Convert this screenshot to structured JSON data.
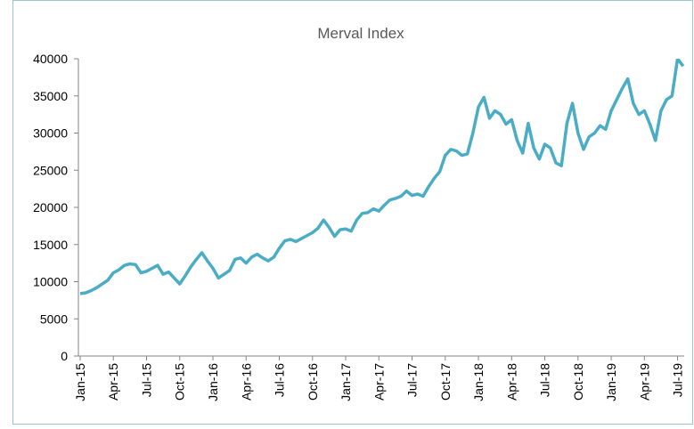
{
  "chart_data": {
    "type": "line",
    "title": "Merval Index",
    "x": [
      0,
      0.5,
      1,
      1.5,
      2,
      2.5,
      3,
      3.5,
      4,
      4.5,
      5,
      5.5,
      6,
      6.5,
      7,
      7.5,
      8,
      8.5,
      9,
      9.5,
      10,
      10.5,
      11,
      11.5,
      12,
      12.5,
      13,
      13.5,
      14,
      14.5,
      15,
      15.5,
      16,
      16.5,
      17,
      17.5,
      18,
      18.5,
      19,
      19.5,
      20,
      20.5,
      21,
      21.5,
      22,
      22.5,
      23,
      23.5,
      24,
      24.5,
      25,
      25.5,
      26,
      26.5,
      27,
      27.5,
      28,
      28.5,
      29,
      29.5,
      30,
      30.5,
      31,
      31.5,
      32,
      32.5,
      33,
      33.5,
      34,
      34.5,
      35,
      35.5,
      36,
      36.5,
      37,
      37.5,
      38,
      38.5,
      39,
      39.5,
      40,
      40.5,
      41,
      41.5,
      42,
      42.5,
      43,
      43.5,
      44,
      44.5,
      45,
      45.5,
      46,
      46.5,
      47,
      47.5,
      48,
      48.5,
      49,
      49.5,
      50,
      50.5,
      51,
      51.5,
      52,
      52.5,
      53,
      53.5,
      54,
      54.5
    ],
    "values": [
      8400,
      8500,
      8800,
      9200,
      9700,
      10200,
      11200,
      11600,
      12200,
      12400,
      12300,
      11200,
      11400,
      11800,
      12200,
      11000,
      11300,
      10500,
      9700,
      10800,
      12000,
      13000,
      13900,
      12800,
      11800,
      10500,
      11000,
      11500,
      13000,
      13200,
      12500,
      13300,
      13700,
      13200,
      12800,
      13300,
      14500,
      15500,
      15700,
      15400,
      15800,
      16200,
      16600,
      17200,
      18300,
      17300,
      16100,
      17000,
      17100,
      16800,
      18300,
      19200,
      19300,
      19800,
      19500,
      20300,
      21000,
      21200,
      21500,
      22200,
      21600,
      21800,
      21500,
      22800,
      23900,
      24800,
      27000,
      27800,
      27600,
      27000,
      27200,
      30000,
      33500,
      34800,
      32000,
      33000,
      32500,
      31200,
      31800,
      29000,
      27300,
      31300,
      28000,
      26500,
      28500,
      28000,
      26000,
      25600,
      31300,
      34000,
      30000,
      27800,
      29500,
      30000,
      31000,
      30500,
      33000,
      34500,
      36000,
      37300,
      34000,
      32500,
      33000,
      31200,
      29000,
      33000,
      34500,
      35000,
      40000,
      39000
    ],
    "color": "#4bacc6",
    "xlim": [
      -0.16,
      54.6
    ],
    "xticks": [
      {
        "value": 0,
        "label": "Jan-15"
      },
      {
        "value": 3,
        "label": "Apr-15"
      },
      {
        "value": 6,
        "label": "Jul-15"
      },
      {
        "value": 9,
        "label": "Oct-15"
      },
      {
        "value": 12,
        "label": "Jan-16"
      },
      {
        "value": 15,
        "label": "Apr-16"
      },
      {
        "value": 18,
        "label": "Jul-16"
      },
      {
        "value": 21,
        "label": "Oct-16"
      },
      {
        "value": 24,
        "label": "Jan-17"
      },
      {
        "value": 27,
        "label": "Apr-17"
      },
      {
        "value": 30,
        "label": "Jul-17"
      },
      {
        "value": 33,
        "label": "Oct-17"
      },
      {
        "value": 36,
        "label": "Jan-18"
      },
      {
        "value": 39,
        "label": "Apr-18"
      },
      {
        "value": 42,
        "label": "Jul-18"
      },
      {
        "value": 45,
        "label": "Oct-18"
      },
      {
        "value": 48,
        "label": "Jan-19"
      },
      {
        "value": 51,
        "label": "Apr-19"
      },
      {
        "value": 54,
        "label": "Jul-19"
      }
    ],
    "ylim": [
      0,
      40000
    ],
    "yticks": [
      0,
      5000,
      10000,
      15000,
      20000,
      25000,
      30000,
      35000,
      40000
    ],
    "grid": false
  }
}
